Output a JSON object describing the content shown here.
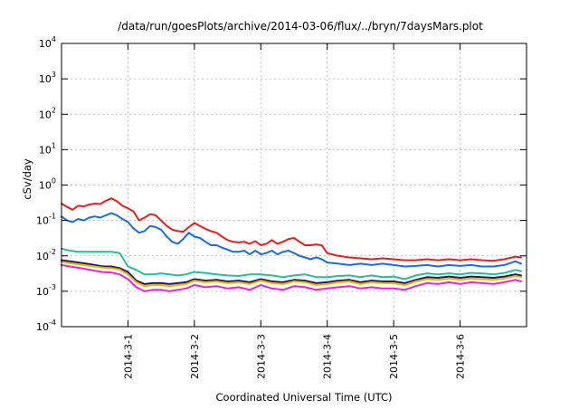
{
  "chart_data": {
    "type": "line",
    "title": "/data/run/goesPlots/archive/2014-03-06/flux/../bryn/7daysMars.plot",
    "xlabel": "Coordinated Universal Time (UTC)",
    "ylabel": "cSv/day",
    "yscale": "log",
    "ylim": [
      0.0001,
      10000
    ],
    "xlim": [
      "2014-02-28T00:00",
      "2014-03-07T00:00"
    ],
    "grid": true,
    "y_ticks": [
      {
        "value": 0.0001,
        "base": "10",
        "exp": "-4"
      },
      {
        "value": 0.001,
        "base": "10",
        "exp": "-3"
      },
      {
        "value": 0.01,
        "base": "10",
        "exp": "-2"
      },
      {
        "value": 0.1,
        "base": "10",
        "exp": "-1"
      },
      {
        "value": 1,
        "base": "10",
        "exp": "0"
      },
      {
        "value": 10,
        "base": "10",
        "exp": "1"
      },
      {
        "value": 100,
        "base": "10",
        "exp": "2"
      },
      {
        "value": 1000,
        "base": "10",
        "exp": "3"
      },
      {
        "value": 10000,
        "base": "10",
        "exp": "4"
      }
    ],
    "x_ticks": [
      {
        "value": "2014-03-01T00:00",
        "label": "2014-3-1"
      },
      {
        "value": "2014-03-02T00:00",
        "label": "2014-3-2"
      },
      {
        "value": "2014-03-03T00:00",
        "label": "2014-3-3"
      },
      {
        "value": "2014-03-04T00:00",
        "label": "2014-3-4"
      },
      {
        "value": "2014-03-05T00:00",
        "label": "2014-3-5"
      },
      {
        "value": "2014-03-06T00:00",
        "label": "2014-3-6"
      }
    ],
    "series": [
      {
        "color": "#ee1c1c",
        "x": [
          "2014-02-28T00:00",
          "2014-02-28T02:00",
          "2014-02-28T04:00",
          "2014-02-28T06:00",
          "2014-02-28T08:00",
          "2014-02-28T10:00",
          "2014-02-28T12:00",
          "2014-02-28T14:00",
          "2014-02-28T16:00",
          "2014-02-28T18:00",
          "2014-02-28T20:00",
          "2014-02-28T22:00",
          "2014-03-01T00:00",
          "2014-03-01T02:00",
          "2014-03-01T04:00",
          "2014-03-01T06:00",
          "2014-03-01T08:00",
          "2014-03-01T10:00",
          "2014-03-01T12:00",
          "2014-03-01T14:00",
          "2014-03-01T16:00",
          "2014-03-01T18:00",
          "2014-03-01T20:00",
          "2014-03-01T22:00",
          "2014-03-02T00:00",
          "2014-03-02T02:00",
          "2014-03-02T04:00",
          "2014-03-02T06:00",
          "2014-03-02T08:00",
          "2014-03-02T10:00",
          "2014-03-02T12:00",
          "2014-03-02T14:00",
          "2014-03-02T16:00",
          "2014-03-02T18:00",
          "2014-03-02T20:00",
          "2014-03-02T22:00",
          "2014-03-03T00:00",
          "2014-03-03T02:00",
          "2014-03-03T04:00",
          "2014-03-03T06:00",
          "2014-03-03T08:00",
          "2014-03-03T10:00",
          "2014-03-03T12:00",
          "2014-03-03T14:00",
          "2014-03-03T16:00",
          "2014-03-03T18:00",
          "2014-03-03T20:00",
          "2014-03-03T22:00",
          "2014-03-04T00:00",
          "2014-03-04T04:00",
          "2014-03-04T08:00",
          "2014-03-04T12:00",
          "2014-03-04T16:00",
          "2014-03-04T20:00",
          "2014-03-05T00:00",
          "2014-03-05T04:00",
          "2014-03-05T08:00",
          "2014-03-05T12:00",
          "2014-03-05T16:00",
          "2014-03-05T20:00",
          "2014-03-06T00:00",
          "2014-03-06T04:00",
          "2014-03-06T08:00",
          "2014-03-06T12:00",
          "2014-03-06T16:00",
          "2014-03-06T20:00",
          "2014-03-06T22:00"
        ],
        "y": [
          0.3,
          0.24,
          0.2,
          0.26,
          0.25,
          0.28,
          0.3,
          0.29,
          0.36,
          0.42,
          0.35,
          0.26,
          0.22,
          0.18,
          0.1,
          0.12,
          0.15,
          0.14,
          0.1,
          0.07,
          0.055,
          0.05,
          0.048,
          0.065,
          0.085,
          0.07,
          0.058,
          0.05,
          0.045,
          0.035,
          0.028,
          0.025,
          0.024,
          0.025,
          0.022,
          0.026,
          0.02,
          0.022,
          0.028,
          0.022,
          0.025,
          0.03,
          0.032,
          0.025,
          0.02,
          0.02,
          0.021,
          0.02,
          0.012,
          0.01,
          0.009,
          0.0085,
          0.008,
          0.0085,
          0.008,
          0.0075,
          0.0075,
          0.008,
          0.0075,
          0.008,
          0.0075,
          0.008,
          0.0075,
          0.0072,
          0.008,
          0.0095,
          0.009
        ]
      },
      {
        "color": "#1a6ce6",
        "x": [
          "2014-02-28T00:00",
          "2014-02-28T02:00",
          "2014-02-28T04:00",
          "2014-02-28T06:00",
          "2014-02-28T08:00",
          "2014-02-28T10:00",
          "2014-02-28T12:00",
          "2014-02-28T14:00",
          "2014-02-28T16:00",
          "2014-02-28T18:00",
          "2014-02-28T20:00",
          "2014-02-28T22:00",
          "2014-03-01T00:00",
          "2014-03-01T02:00",
          "2014-03-01T04:00",
          "2014-03-01T06:00",
          "2014-03-01T08:00",
          "2014-03-01T10:00",
          "2014-03-01T12:00",
          "2014-03-01T14:00",
          "2014-03-01T16:00",
          "2014-03-01T18:00",
          "2014-03-01T20:00",
          "2014-03-01T22:00",
          "2014-03-02T00:00",
          "2014-03-02T02:00",
          "2014-03-02T04:00",
          "2014-03-02T06:00",
          "2014-03-02T08:00",
          "2014-03-02T10:00",
          "2014-03-02T12:00",
          "2014-03-02T14:00",
          "2014-03-02T16:00",
          "2014-03-02T18:00",
          "2014-03-02T20:00",
          "2014-03-02T22:00",
          "2014-03-03T00:00",
          "2014-03-03T02:00",
          "2014-03-03T04:00",
          "2014-03-03T06:00",
          "2014-03-03T08:00",
          "2014-03-03T10:00",
          "2014-03-03T12:00",
          "2014-03-03T14:00",
          "2014-03-03T16:00",
          "2014-03-03T18:00",
          "2014-03-03T20:00",
          "2014-03-03T22:00",
          "2014-03-04T00:00",
          "2014-03-04T04:00",
          "2014-03-04T08:00",
          "2014-03-04T12:00",
          "2014-03-04T16:00",
          "2014-03-04T20:00",
          "2014-03-05T00:00",
          "2014-03-05T04:00",
          "2014-03-05T08:00",
          "2014-03-05T12:00",
          "2014-03-05T16:00",
          "2014-03-05T20:00",
          "2014-03-06T00:00",
          "2014-03-06T04:00",
          "2014-03-06T08:00",
          "2014-03-06T12:00",
          "2014-03-06T16:00",
          "2014-03-06T20:00",
          "2014-03-06T22:00"
        ],
        "y": [
          0.13,
          0.1,
          0.09,
          0.11,
          0.1,
          0.12,
          0.13,
          0.12,
          0.14,
          0.16,
          0.14,
          0.11,
          0.09,
          0.06,
          0.045,
          0.05,
          0.07,
          0.065,
          0.055,
          0.035,
          0.025,
          0.022,
          0.03,
          0.045,
          0.035,
          0.032,
          0.025,
          0.02,
          0.02,
          0.017,
          0.015,
          0.013,
          0.013,
          0.014,
          0.011,
          0.014,
          0.011,
          0.012,
          0.014,
          0.011,
          0.013,
          0.014,
          0.012,
          0.01,
          0.009,
          0.008,
          0.009,
          0.008,
          0.0065,
          0.006,
          0.0055,
          0.006,
          0.0055,
          0.006,
          0.0055,
          0.005,
          0.0052,
          0.0055,
          0.005,
          0.0055,
          0.0052,
          0.0055,
          0.005,
          0.005,
          0.0055,
          0.007,
          0.006
        ]
      },
      {
        "color": "#1fc29a",
        "x": [
          "2014-02-28T00:00",
          "2014-02-28T03:00",
          "2014-02-28T06:00",
          "2014-02-28T09:00",
          "2014-02-28T12:00",
          "2014-02-28T15:00",
          "2014-02-28T18:00",
          "2014-02-28T21:00",
          "2014-03-01T00:00",
          "2014-03-01T03:00",
          "2014-03-01T06:00",
          "2014-03-01T09:00",
          "2014-03-01T12:00",
          "2014-03-01T15:00",
          "2014-03-01T18:00",
          "2014-03-01T21:00",
          "2014-03-02T00:00",
          "2014-03-02T04:00",
          "2014-03-02T08:00",
          "2014-03-02T12:00",
          "2014-03-02T16:00",
          "2014-03-02T20:00",
          "2014-03-03T00:00",
          "2014-03-03T04:00",
          "2014-03-03T08:00",
          "2014-03-03T12:00",
          "2014-03-03T16:00",
          "2014-03-03T20:00",
          "2014-03-04T00:00",
          "2014-03-04T04:00",
          "2014-03-04T08:00",
          "2014-03-04T12:00",
          "2014-03-04T16:00",
          "2014-03-04T20:00",
          "2014-03-05T00:00",
          "2014-03-05T04:00",
          "2014-03-05T08:00",
          "2014-03-05T12:00",
          "2014-03-05T16:00",
          "2014-03-05T20:00",
          "2014-03-06T00:00",
          "2014-03-06T04:00",
          "2014-03-06T08:00",
          "2014-03-06T12:00",
          "2014-03-06T16:00",
          "2014-03-06T20:00",
          "2014-03-06T22:00"
        ],
        "y": [
          0.016,
          0.014,
          0.013,
          0.013,
          0.013,
          0.013,
          0.013,
          0.012,
          0.005,
          0.004,
          0.003,
          0.003,
          0.0032,
          0.003,
          0.0028,
          0.003,
          0.0035,
          0.0033,
          0.003,
          0.0028,
          0.0027,
          0.003,
          0.003,
          0.0028,
          0.0025,
          0.0028,
          0.003,
          0.0025,
          0.0025,
          0.0027,
          0.0028,
          0.0025,
          0.0028,
          0.0025,
          0.0026,
          0.0022,
          0.0028,
          0.0032,
          0.003,
          0.0032,
          0.003,
          0.0033,
          0.0032,
          0.003,
          0.0033,
          0.004,
          0.0037
        ]
      },
      {
        "color": "#1a1a66",
        "x": [
          "2014-02-28T00:00",
          "2014-02-28T03:00",
          "2014-02-28T06:00",
          "2014-02-28T09:00",
          "2014-02-28T12:00",
          "2014-02-28T15:00",
          "2014-02-28T18:00",
          "2014-02-28T21:00",
          "2014-03-01T00:00",
          "2014-03-01T03:00",
          "2014-03-01T06:00",
          "2014-03-01T09:00",
          "2014-03-01T12:00",
          "2014-03-01T15:00",
          "2014-03-01T18:00",
          "2014-03-01T21:00",
          "2014-03-02T00:00",
          "2014-03-02T04:00",
          "2014-03-02T08:00",
          "2014-03-02T12:00",
          "2014-03-02T16:00",
          "2014-03-02T20:00",
          "2014-03-03T00:00",
          "2014-03-03T04:00",
          "2014-03-03T08:00",
          "2014-03-03T12:00",
          "2014-03-03T16:00",
          "2014-03-03T20:00",
          "2014-03-04T00:00",
          "2014-03-04T04:00",
          "2014-03-04T08:00",
          "2014-03-04T12:00",
          "2014-03-04T16:00",
          "2014-03-04T20:00",
          "2014-03-05T00:00",
          "2014-03-05T04:00",
          "2014-03-05T08:00",
          "2014-03-05T12:00",
          "2014-03-05T16:00",
          "2014-03-05T20:00",
          "2014-03-06T00:00",
          "2014-03-06T04:00",
          "2014-03-06T08:00",
          "2014-03-06T12:00",
          "2014-03-06T16:00",
          "2014-03-06T20:00",
          "2014-03-06T22:00"
        ],
        "y": [
          0.0075,
          0.007,
          0.0065,
          0.006,
          0.0055,
          0.005,
          0.005,
          0.0045,
          0.0035,
          0.002,
          0.0016,
          0.0017,
          0.0017,
          0.0016,
          0.0017,
          0.0018,
          0.0022,
          0.002,
          0.0021,
          0.0019,
          0.002,
          0.0018,
          0.0022,
          0.0019,
          0.0018,
          0.0021,
          0.002,
          0.0017,
          0.0018,
          0.002,
          0.0021,
          0.0018,
          0.002,
          0.0019,
          0.0019,
          0.0017,
          0.0021,
          0.0025,
          0.0024,
          0.0026,
          0.0024,
          0.0026,
          0.0025,
          0.0024,
          0.0026,
          0.003,
          0.0028
        ]
      },
      {
        "color": "#f0b400",
        "x": [
          "2014-02-28T00:00",
          "2014-02-28T03:00",
          "2014-02-28T06:00",
          "2014-02-28T09:00",
          "2014-02-28T12:00",
          "2014-02-28T15:00",
          "2014-02-28T18:00",
          "2014-02-28T21:00",
          "2014-03-01T00:00",
          "2014-03-01T03:00",
          "2014-03-01T06:00",
          "2014-03-01T09:00",
          "2014-03-01T12:00",
          "2014-03-01T15:00",
          "2014-03-01T18:00",
          "2014-03-01T21:00",
          "2014-03-02T00:00",
          "2014-03-02T04:00",
          "2014-03-02T08:00",
          "2014-03-02T12:00",
          "2014-03-02T16:00",
          "2014-03-02T20:00",
          "2014-03-03T00:00",
          "2014-03-03T04:00",
          "2014-03-03T08:00",
          "2014-03-03T12:00",
          "2014-03-03T16:00",
          "2014-03-03T20:00",
          "2014-03-04T00:00",
          "2014-03-04T04:00",
          "2014-03-04T08:00",
          "2014-03-04T12:00",
          "2014-03-04T16:00",
          "2014-03-04T20:00",
          "2014-03-05T00:00",
          "2014-03-05T04:00",
          "2014-03-05T08:00",
          "2014-03-05T12:00",
          "2014-03-05T16:00",
          "2014-03-05T20:00",
          "2014-03-06T00:00",
          "2014-03-06T04:00",
          "2014-03-06T08:00",
          "2014-03-06T12:00",
          "2014-03-06T16:00",
          "2014-03-06T20:00",
          "2014-03-06T22:00"
        ],
        "y": [
          0.0068,
          0.0062,
          0.0058,
          0.0054,
          0.005,
          0.0046,
          0.0045,
          0.0041,
          0.003,
          0.0018,
          0.0014,
          0.0015,
          0.0015,
          0.0014,
          0.0015,
          0.0016,
          0.002,
          0.0018,
          0.0019,
          0.0017,
          0.0018,
          0.0016,
          0.002,
          0.0017,
          0.0016,
          0.0019,
          0.0018,
          0.0015,
          0.0016,
          0.0018,
          0.0019,
          0.0016,
          0.0018,
          0.0017,
          0.0017,
          0.0015,
          0.0019,
          0.0022,
          0.0021,
          0.0023,
          0.0021,
          0.0023,
          0.0022,
          0.0021,
          0.0023,
          0.0027,
          0.0025
        ]
      },
      {
        "color": "#ee22dd",
        "x": [
          "2014-02-28T00:00",
          "2014-02-28T03:00",
          "2014-02-28T06:00",
          "2014-02-28T09:00",
          "2014-02-28T12:00",
          "2014-02-28T15:00",
          "2014-02-28T18:00",
          "2014-02-28T21:00",
          "2014-03-01T00:00",
          "2014-03-01T03:00",
          "2014-03-01T06:00",
          "2014-03-01T09:00",
          "2014-03-01T12:00",
          "2014-03-01T15:00",
          "2014-03-01T18:00",
          "2014-03-01T21:00",
          "2014-03-02T00:00",
          "2014-03-02T04:00",
          "2014-03-02T08:00",
          "2014-03-02T12:00",
          "2014-03-02T16:00",
          "2014-03-02T20:00",
          "2014-03-03T00:00",
          "2014-03-03T04:00",
          "2014-03-03T08:00",
          "2014-03-03T12:00",
          "2014-03-03T16:00",
          "2014-03-03T20:00",
          "2014-03-04T00:00",
          "2014-03-04T04:00",
          "2014-03-04T08:00",
          "2014-03-04T12:00",
          "2014-03-04T16:00",
          "2014-03-04T20:00",
          "2014-03-05T00:00",
          "2014-03-05T04:00",
          "2014-03-05T08:00",
          "2014-03-05T12:00",
          "2014-03-05T16:00",
          "2014-03-05T20:00",
          "2014-03-06T00:00",
          "2014-03-06T04:00",
          "2014-03-06T08:00",
          "2014-03-06T12:00",
          "2014-03-06T16:00",
          "2014-03-06T20:00",
          "2014-03-06T22:00"
        ],
        "y": [
          0.0055,
          0.005,
          0.0046,
          0.0042,
          0.0038,
          0.0035,
          0.0034,
          0.003,
          0.0022,
          0.0013,
          0.001,
          0.0011,
          0.0011,
          0.001,
          0.0011,
          0.0012,
          0.0015,
          0.0013,
          0.0014,
          0.0012,
          0.0013,
          0.0011,
          0.0015,
          0.0012,
          0.0011,
          0.0014,
          0.0013,
          0.0011,
          0.0012,
          0.0013,
          0.0014,
          0.0012,
          0.0013,
          0.0012,
          0.0012,
          0.0011,
          0.0014,
          0.0017,
          0.0016,
          0.0018,
          0.0016,
          0.0018,
          0.0017,
          0.0016,
          0.0018,
          0.0021,
          0.0019
        ]
      }
    ]
  }
}
